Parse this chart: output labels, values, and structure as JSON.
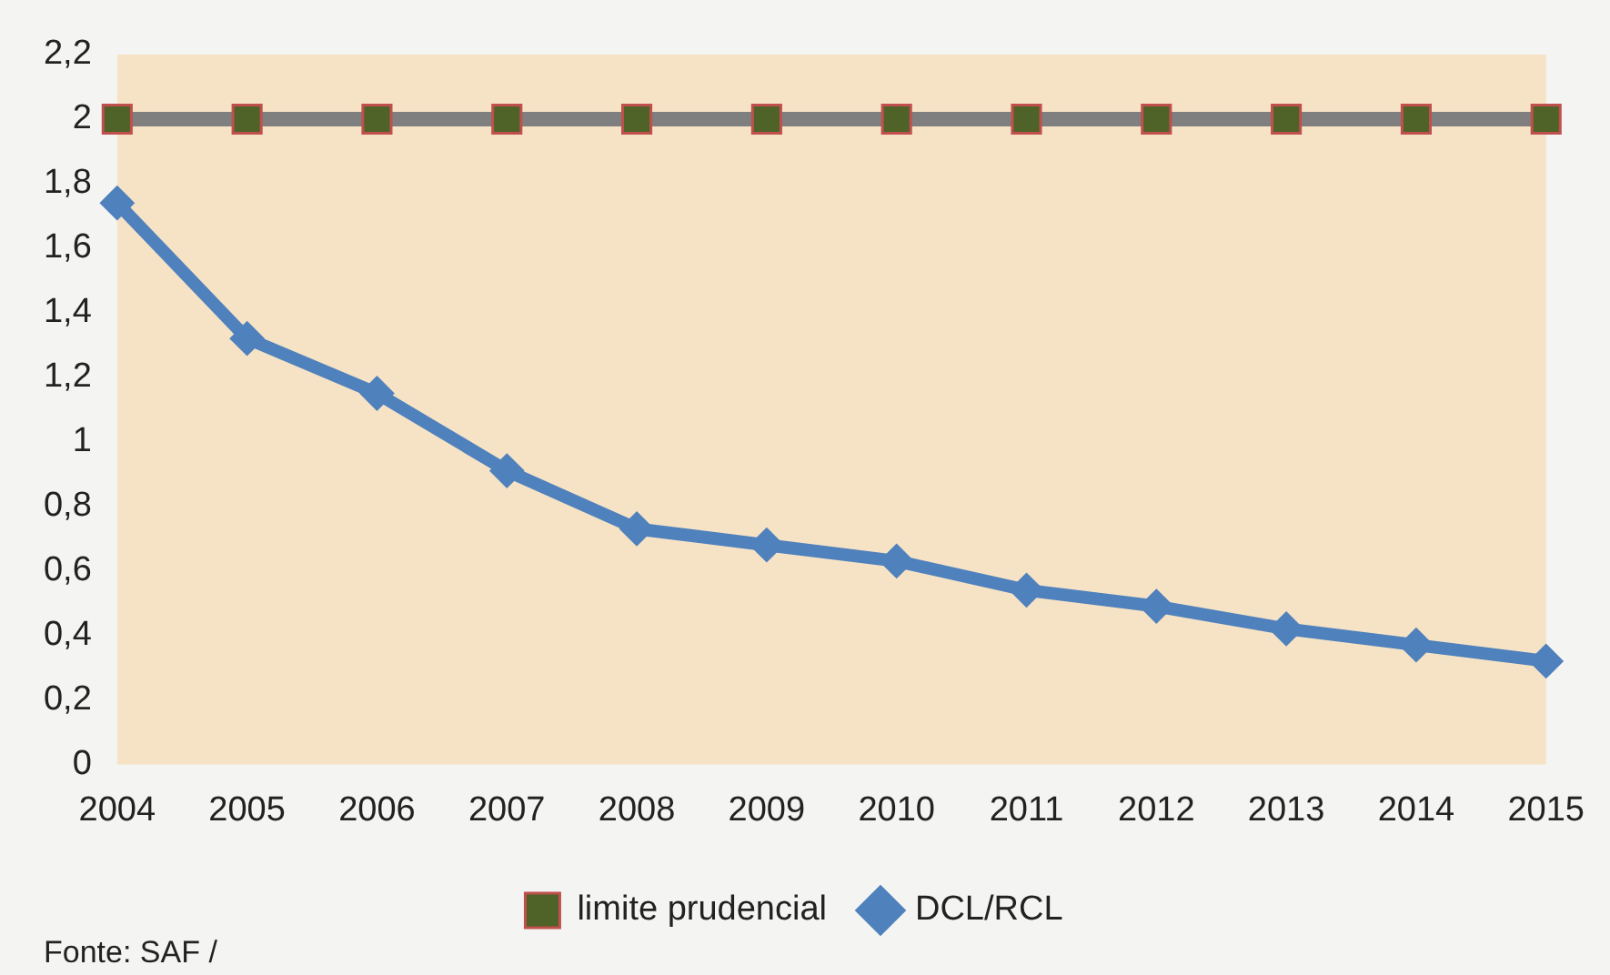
{
  "chart_data": {
    "type": "line",
    "categories": [
      "2004",
      "2005",
      "2006",
      "2007",
      "2008",
      "2009",
      "2010",
      "2011",
      "2012",
      "2013",
      "2014",
      "2015"
    ],
    "series": [
      {
        "name": "DCL/RCL",
        "color": "#4f81bd",
        "marker": "diamond",
        "values": [
          1.74,
          1.32,
          1.15,
          0.91,
          0.73,
          0.68,
          0.63,
          0.54,
          0.49,
          0.42,
          0.37,
          0.32
        ]
      },
      {
        "name": "limite prudencial",
        "color": "#7f7f7f",
        "marker": "square",
        "values": [
          2,
          2,
          2,
          2,
          2,
          2,
          2,
          2,
          2,
          2,
          2,
          2
        ]
      }
    ],
    "ylim": [
      0,
      2.2
    ],
    "yticks": [
      {
        "value": 0,
        "label": "0"
      },
      {
        "value": 0.2,
        "label": "0,2"
      },
      {
        "value": 0.4,
        "label": "0,4"
      },
      {
        "value": 0.6,
        "label": "0,6"
      },
      {
        "value": 0.8,
        "label": "0,8"
      },
      {
        "value": 1,
        "label": "1"
      },
      {
        "value": 1.2,
        "label": "1,2"
      },
      {
        "value": 1.4,
        "label": "1,4"
      },
      {
        "value": 1.6,
        "label": "1,6"
      },
      {
        "value": 1.8,
        "label": "1,8"
      },
      {
        "value": 2,
        "label": "2"
      },
      {
        "value": 2.2,
        "label": "2,2"
      }
    ],
    "grid": false,
    "legend": "bottom",
    "annotations": [
      "Fonte: SAF /"
    ]
  }
}
